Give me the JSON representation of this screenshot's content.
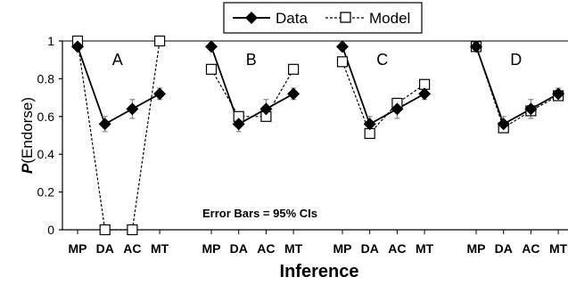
{
  "chart_data": {
    "type": "line",
    "ylabel_italic": "P",
    "ylabel_rest": "(Endorse)",
    "xlabel": "Inference",
    "ylim": [
      0,
      1
    ],
    "yticks": [
      "0",
      "0.2",
      "0.4",
      "0.6",
      "0.8",
      "1"
    ],
    "grid": false,
    "legend_placement": "top-center",
    "annotation": "Error Bars = 95% CIs",
    "categories": [
      "MP",
      "DA",
      "AC",
      "MT"
    ],
    "panels": [
      {
        "label": "A",
        "series": [
          {
            "name": "Data",
            "values": [
              0.97,
              0.56,
              0.64,
              0.72
            ],
            "ci": [
              0.02,
              0.04,
              0.05,
              0.03
            ]
          },
          {
            "name": "Model",
            "values": [
              1.0,
              0.0,
              0.0,
              1.0
            ]
          }
        ]
      },
      {
        "label": "B",
        "series": [
          {
            "name": "Data",
            "values": [
              0.97,
              0.56,
              0.64,
              0.72
            ],
            "ci": [
              0.02,
              0.04,
              0.05,
              0.03
            ]
          },
          {
            "name": "Model",
            "values": [
              0.85,
              0.6,
              0.6,
              0.85
            ]
          }
        ]
      },
      {
        "label": "C",
        "series": [
          {
            "name": "Data",
            "values": [
              0.97,
              0.56,
              0.64,
              0.72
            ],
            "ci": [
              0.02,
              0.04,
              0.05,
              0.03
            ]
          },
          {
            "name": "Model",
            "values": [
              0.89,
              0.51,
              0.67,
              0.77
            ]
          }
        ]
      },
      {
        "label": "D",
        "series": [
          {
            "name": "Data",
            "values": [
              0.97,
              0.56,
              0.64,
              0.72
            ],
            "ci": [
              0.02,
              0.04,
              0.05,
              0.03
            ]
          },
          {
            "name": "Model",
            "values": [
              0.97,
              0.54,
              0.63,
              0.71
            ]
          }
        ]
      }
    ],
    "colors": {
      "line": "#000000",
      "marker_fill_model": "#ffffff",
      "axis": "#000000",
      "ci": "#888888"
    }
  }
}
